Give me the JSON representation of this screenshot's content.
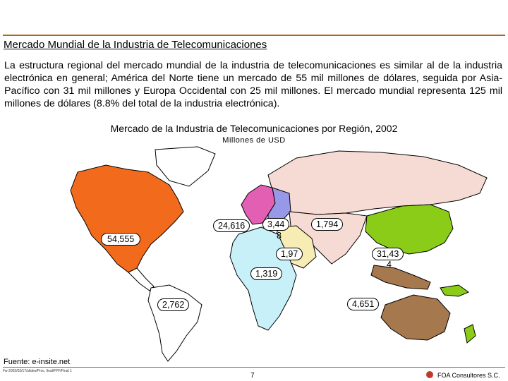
{
  "title": "Mercado Mundial de la Industria de Telecomunicaciones",
  "paragraph": "La estructura regional del mercado mundial de la industria de telecomunicaciones es similar al de la industria electrónica en general; América del Norte tiene un mercado de 55 mil millones de dólares, seguida por Asia-Pacífico con 31 mil millones y Europa Occidental con 25 mil millones. El mercado mundial representa 125 mil millones de dólares (8.8% del total de la industria electrónica).",
  "map": {
    "title": "Mercado de la Industria de Telecomunicaciones por Región, 2002",
    "subtitle": "Millones de USD",
    "regions": [
      {
        "name": "north-america",
        "value": "54,555",
        "color": "#f26b1d"
      },
      {
        "name": "western-europe",
        "value": "24,616",
        "color": "#e25fb4"
      },
      {
        "name": "eastern-europe",
        "value": "3,44",
        "value_extra": "8",
        "color": "#9898e8"
      },
      {
        "name": "russia",
        "value": "",
        "color": "#f6dad4"
      },
      {
        "name": "asia-rest",
        "value": "1,794",
        "color": "#f6dad4"
      },
      {
        "name": "middle-east",
        "value": "1,97",
        "color": "#f6ecb4"
      },
      {
        "name": "africa",
        "value": "1,319",
        "color": "#c8f0f8"
      },
      {
        "name": "latin-america",
        "value": "2,762",
        "color": "#ffffff"
      },
      {
        "name": "asia-pacific",
        "value": "31,43",
        "value_extra": "4",
        "color": "#8acc18"
      },
      {
        "name": "oceania",
        "value": "4,651",
        "color": "#a5784e"
      }
    ]
  },
  "source": "Fuente:  e-insite.net",
  "file_ref": "Fw 2002/02/17/slides/Proc. final/FFF/Final 1",
  "page_number": "7",
  "company": "FOA Consultores S.C."
}
